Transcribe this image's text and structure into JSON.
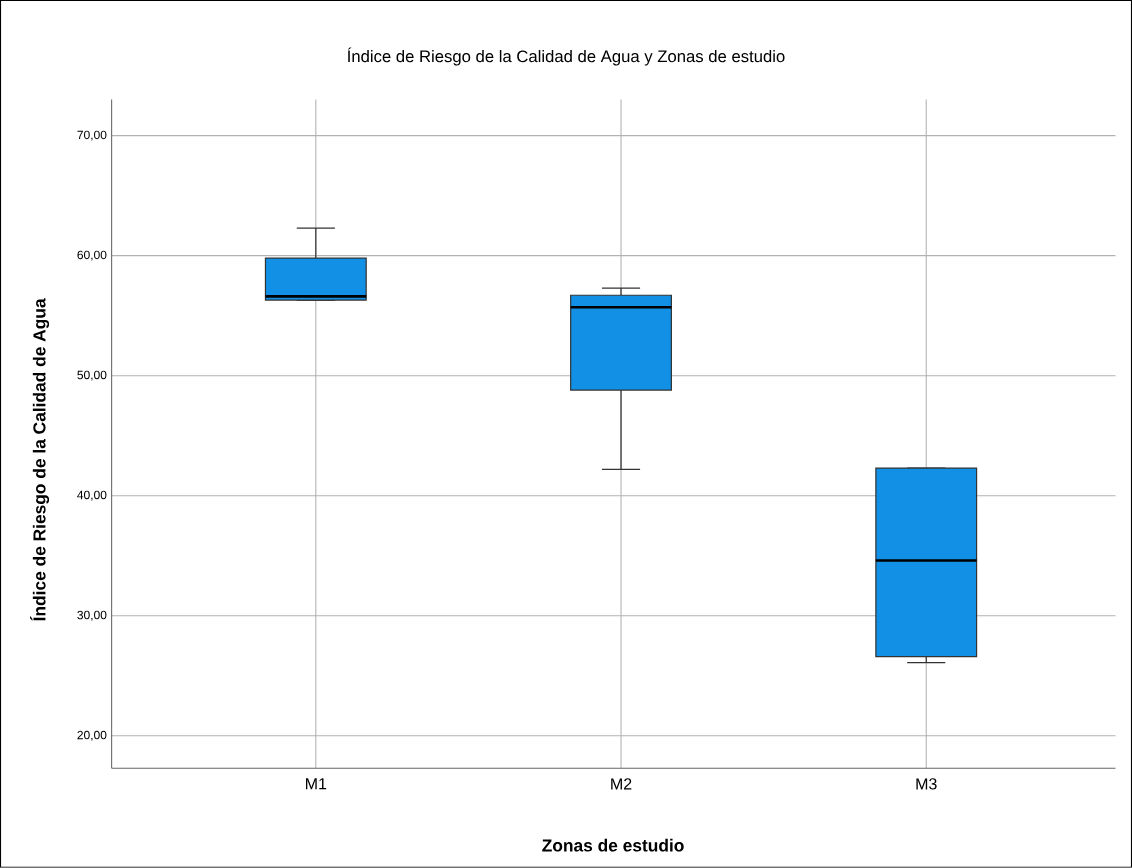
{
  "chart_data": {
    "type": "box",
    "title": "Índice de Riesgo de la Calidad de Agua y Zonas de estudio",
    "xlabel": "Zonas de estudio",
    "ylabel": "Índice de Riesgo de la Calidad de Agua",
    "categories": [
      "M1",
      "M2",
      "M3"
    ],
    "series": [
      {
        "color": "#1190e6",
        "boxes": [
          {
            "low": 56.3,
            "q1": 56.3,
            "median": 56.6,
            "q3": 59.8,
            "high": 62.3
          },
          {
            "low": 42.2,
            "q1": 48.8,
            "median": 55.7,
            "q3": 56.7,
            "high": 57.3
          },
          {
            "low": 26.1,
            "q1": 26.6,
            "median": 34.6,
            "q3": 42.3,
            "high": 42.3
          }
        ]
      }
    ],
    "ylim": [
      17.3,
      73
    ],
    "yticks": [
      {
        "value": 20,
        "label": "20,00"
      },
      {
        "value": 30,
        "label": "30,00"
      },
      {
        "value": 40,
        "label": "40,00"
      },
      {
        "value": 50,
        "label": "50,00"
      },
      {
        "value": 60,
        "label": "60,00"
      },
      {
        "value": 70,
        "label": "70,00"
      }
    ],
    "grid": true
  }
}
